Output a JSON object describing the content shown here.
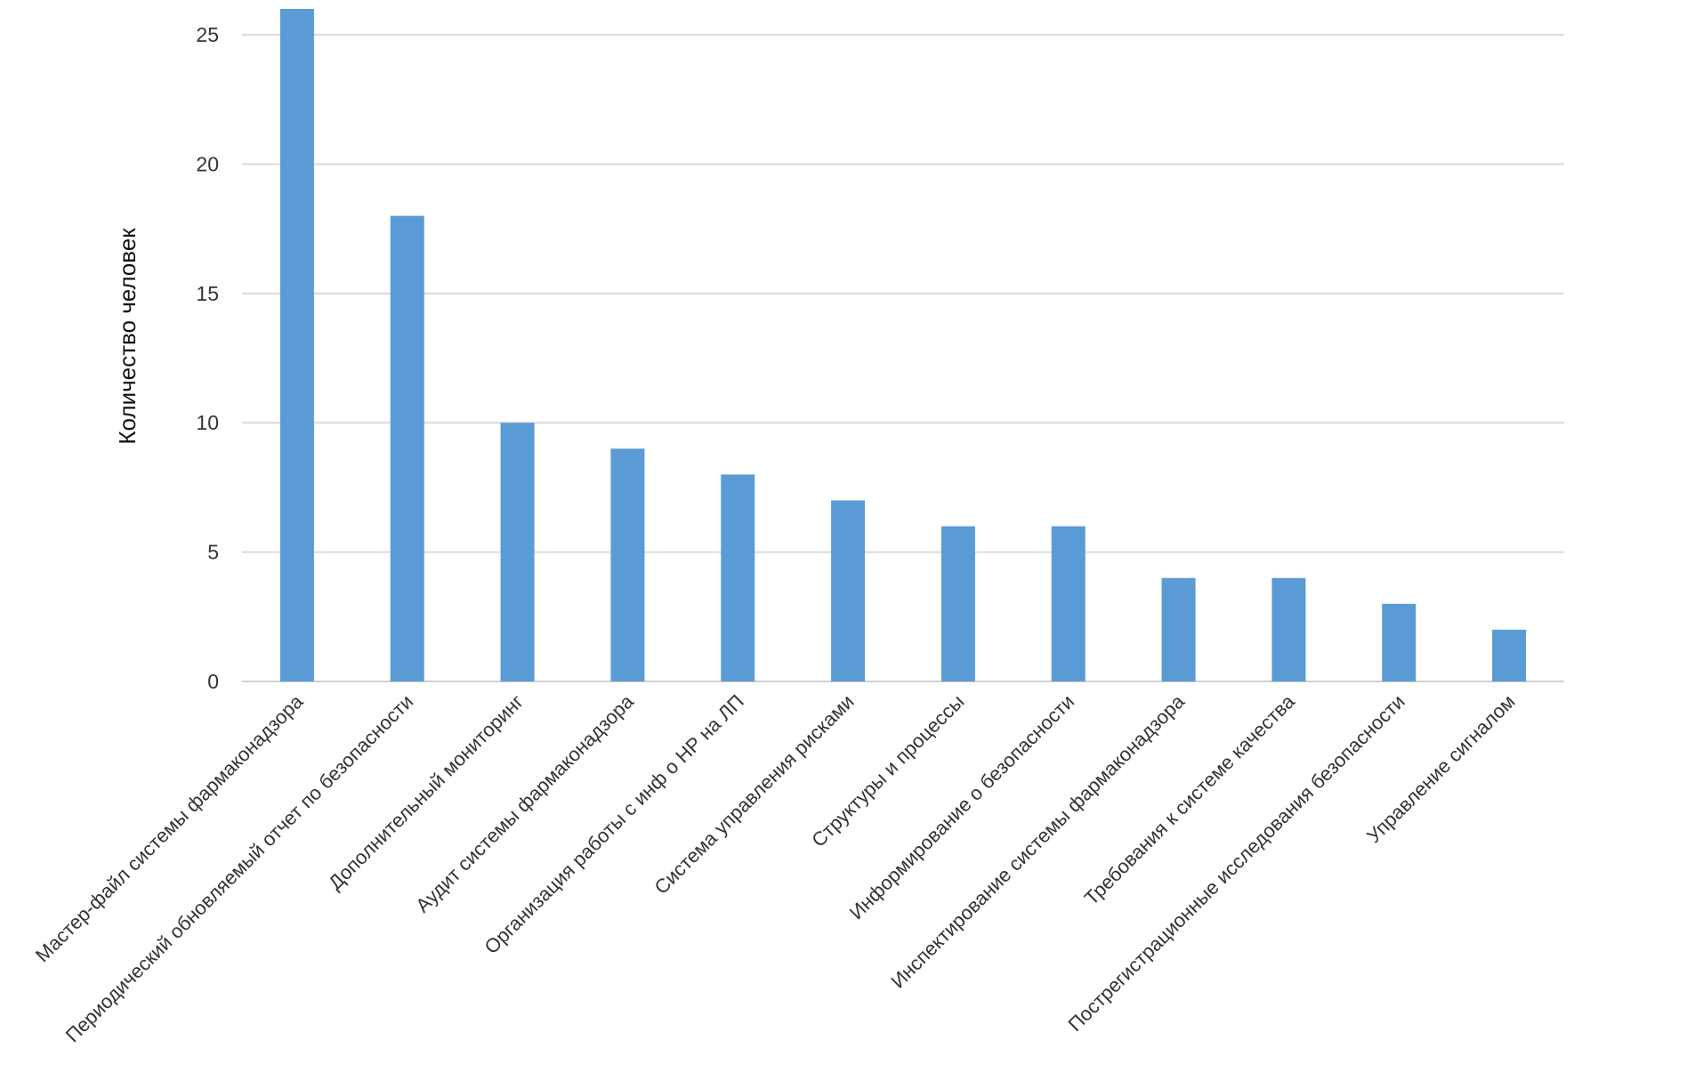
{
  "chart_data": {
    "type": "bar",
    "title": "",
    "xlabel": "",
    "ylabel": "Количество человек",
    "ylim": [
      0,
      26
    ],
    "yticks": [
      0,
      5,
      10,
      15,
      20,
      25
    ],
    "grid": true,
    "legend": "none",
    "bar_color": "#5b9bd5",
    "categories": [
      "Мастер-файл системы фармаконадзора",
      "Периодический обновляемый отчет по безопасности",
      "Дополнительный мониторинг",
      "Аудит системы фармаконадзора",
      "Организация работы с инф о НР на ЛП",
      "Система управления рисками",
      "Структуры и процессы",
      "Информирование о безопасности",
      "Инспектирование системы фармаконадзора",
      "Требования к системе качества",
      "Пострегистрационные исследования безопасности",
      "Управление сигналом"
    ],
    "values": [
      26,
      18,
      10,
      9,
      8,
      7,
      6,
      6,
      4,
      4,
      3,
      2
    ]
  }
}
